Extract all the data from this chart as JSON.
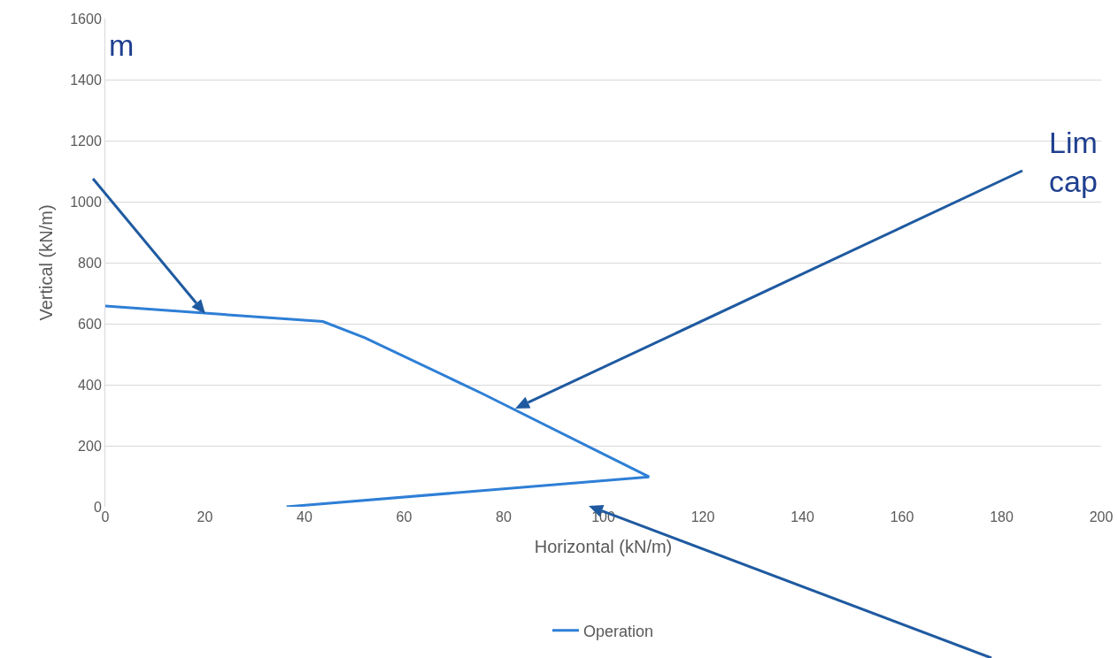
{
  "chart_data": {
    "type": "line",
    "xlabel": "Horizontal (kN/m)",
    "ylabel": "Vertical (kN/m)",
    "xlim": [
      0,
      200
    ],
    "xticks": [
      0,
      20,
      40,
      60,
      80,
      100,
      120,
      140,
      160,
      180,
      200
    ],
    "ylim": [
      0,
      1600
    ],
    "yticks": [
      0,
      200,
      400,
      600,
      800,
      1000,
      1200,
      1400,
      1600
    ],
    "grid": "y",
    "legend": "bottom",
    "marker": "none",
    "line_style": "solid",
    "series": [
      {
        "name": "Operation",
        "color": "#2e7fd6",
        "x": [
          0,
          43.7,
          52.1,
          75.7,
          109.2,
          36.4
        ],
        "values": [
          658,
          607,
          554,
          371,
          98,
          0
        ]
      }
    ],
    "annotations": [
      "m",
      "Lim\ncap"
    ]
  }
}
